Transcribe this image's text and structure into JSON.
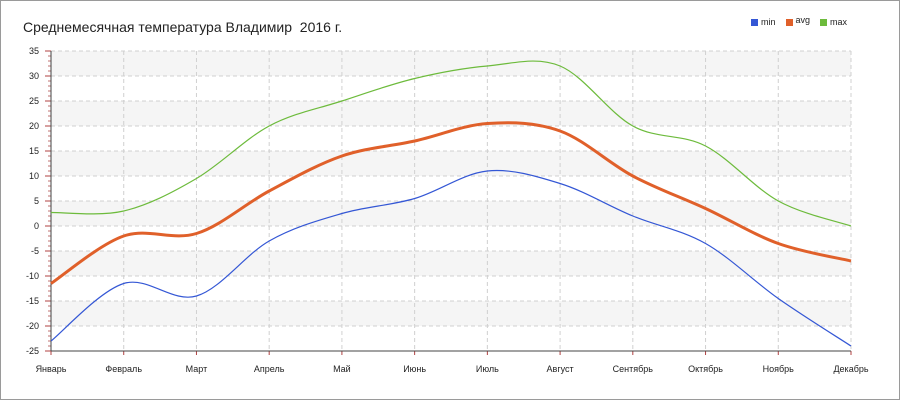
{
  "chart_data": {
    "type": "line",
    "title": "Среднемесячная температура Владимир  2016 г.",
    "categories": [
      "Январь",
      "Февраль",
      "Март",
      "Апрель",
      "Май",
      "Июнь",
      "Июль",
      "Август",
      "Сентябрь",
      "Октябрь",
      "Ноябрь",
      "Декабрь"
    ],
    "series": [
      {
        "name": "min",
        "values": [
          -23,
          -11.5,
          -14,
          -3,
          2.5,
          5.5,
          11,
          8.5,
          2,
          -3.5,
          -14.5,
          -24
        ],
        "color": "#3457d5"
      },
      {
        "name": "avg",
        "values": [
          -11.5,
          -2,
          -1.5,
          7,
          14,
          17,
          20.5,
          19,
          10,
          3.5,
          -3.5,
          -7
        ],
        "color": "#e0602a"
      },
      {
        "name": "max",
        "values": [
          2.7,
          3,
          9.5,
          20,
          25,
          29.5,
          32,
          32,
          20,
          16,
          5,
          0
        ],
        "color": "#6dbb3c"
      }
    ],
    "ylim": [
      -25,
      35
    ],
    "yticks": [
      "35",
      "30",
      "25",
      "20",
      "15",
      "10",
      "5",
      "0",
      "-5",
      "-10",
      "-15",
      "-20",
      "-25"
    ],
    "grid": true,
    "legend_position": "top-right"
  }
}
